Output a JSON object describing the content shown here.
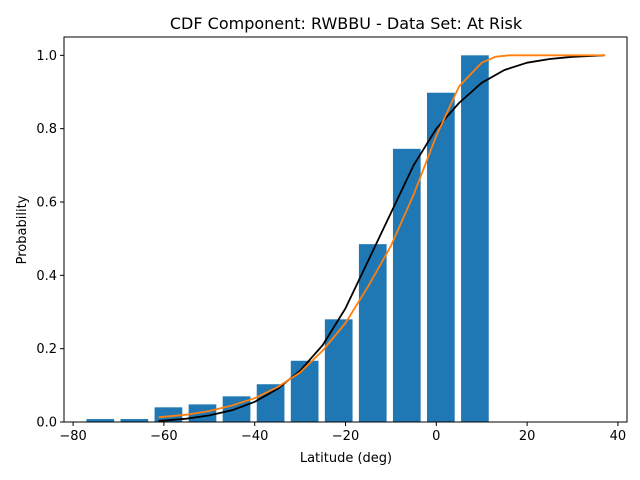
{
  "chart_data": {
    "type": "bar",
    "title": "CDF Component: RWBBU - Data Set: At Risk",
    "xlabel": "Latitude (deg)",
    "ylabel": "Probability",
    "xlim": [
      -82,
      42
    ],
    "ylim": [
      0,
      1.05
    ],
    "grid": false,
    "legend": "none",
    "xticks": [
      -80,
      -60,
      -40,
      -20,
      0,
      20,
      40
    ],
    "xtick_labels": [
      "−80",
      "−60",
      "−40",
      "−20",
      "0",
      "20",
      "40"
    ],
    "yticks": [
      0.0,
      0.2,
      0.4,
      0.6,
      0.8,
      1.0
    ],
    "ytick_labels": [
      "0.0",
      "0.2",
      "0.4",
      "0.6",
      "0.8",
      "1.0"
    ],
    "bar_width": 6.1,
    "bars": {
      "x": [
        -74,
        -66.5,
        -59,
        -51.5,
        -44,
        -36.5,
        -29,
        -21.5,
        -14,
        -6.5,
        1,
        8.5
      ],
      "values": [
        0.008,
        0.008,
        0.04,
        0.048,
        0.07,
        0.103,
        0.167,
        0.28,
        0.485,
        0.745,
        0.898,
        1.0
      ],
      "color": "#1f77b4"
    },
    "series": [
      {
        "type": "line",
        "color": "#000000",
        "x": [
          -61,
          -55,
          -50,
          -45,
          -40,
          -35,
          -30,
          -25,
          -20,
          -15,
          -10,
          -5,
          0,
          5,
          10,
          15,
          20,
          25,
          30,
          37
        ],
        "values": [
          0.003,
          0.009,
          0.018,
          0.032,
          0.055,
          0.09,
          0.14,
          0.21,
          0.31,
          0.44,
          0.57,
          0.7,
          0.8,
          0.87,
          0.925,
          0.96,
          0.98,
          0.99,
          0.996,
          1.0
        ]
      },
      {
        "type": "line",
        "color": "#ff7f0e",
        "x": [
          -61,
          -55,
          -50,
          -45,
          -40,
          -35,
          -30,
          -25,
          -20,
          -15,
          -10,
          -5,
          0,
          5,
          10,
          13,
          16,
          20,
          30,
          37
        ],
        "values": [
          0.013,
          0.02,
          0.03,
          0.045,
          0.065,
          0.095,
          0.135,
          0.195,
          0.27,
          0.37,
          0.48,
          0.62,
          0.78,
          0.915,
          0.98,
          0.996,
          1.0,
          1.0,
          1.0,
          1.0
        ]
      }
    ]
  }
}
